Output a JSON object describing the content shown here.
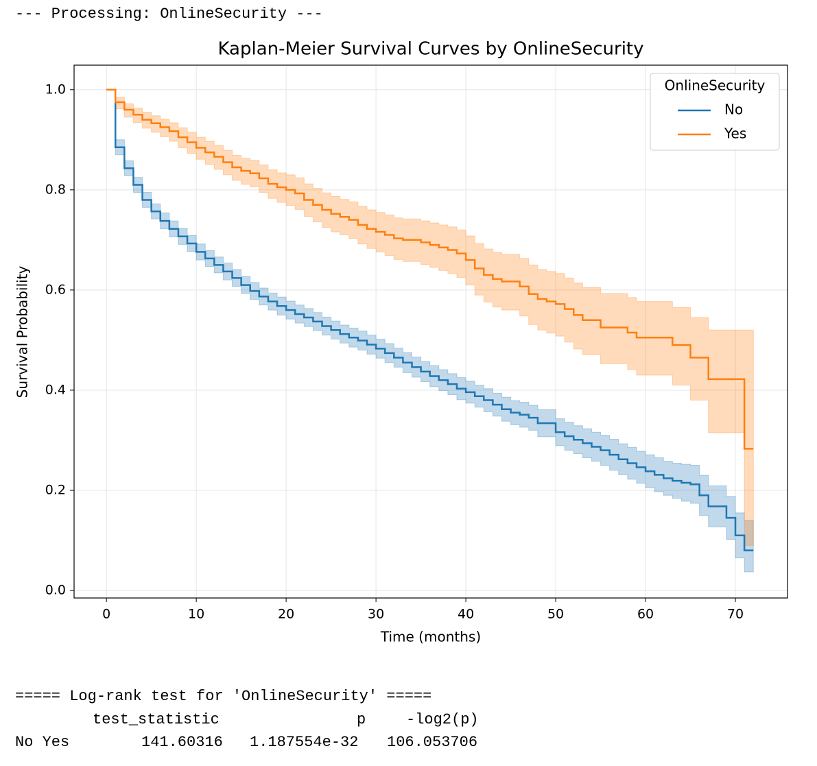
{
  "header": "--- Processing: OnlineSecurity ---",
  "chart_data": {
    "type": "survival",
    "title": "Kaplan-Meier Survival Curves by OnlineSecurity",
    "xlabel": "Time (months)",
    "ylabel": "Survival Probability",
    "legend_title": "OnlineSecurity",
    "legend_loc": "upper right",
    "grid": true,
    "xlim": [
      -3.6,
      75.8
    ],
    "ylim": [
      -0.015,
      1.049
    ],
    "xticks": [
      0,
      10,
      20,
      30,
      40,
      50,
      60,
      70
    ],
    "yticks": [
      {
        "value": 0,
        "label": "0.0"
      },
      {
        "value": 0.2,
        "label": "0.2"
      },
      {
        "value": 0.4,
        "label": "0.4"
      },
      {
        "value": 0.6,
        "label": "0.6"
      },
      {
        "value": 0.8,
        "label": "0.8"
      },
      {
        "value": 1,
        "label": "1.0"
      }
    ],
    "x": [
      0,
      1,
      2,
      3,
      4,
      5,
      6,
      7,
      8,
      9,
      10,
      11,
      12,
      13,
      14,
      15,
      16,
      17,
      18,
      19,
      20,
      21,
      22,
      23,
      24,
      25,
      26,
      27,
      28,
      29,
      30,
      31,
      32,
      33,
      34,
      35,
      36,
      37,
      38,
      39,
      40,
      41,
      42,
      43,
      44,
      45,
      46,
      47,
      48,
      49,
      50,
      51,
      52,
      53,
      54,
      55,
      56,
      57,
      58,
      59,
      60,
      61,
      62,
      63,
      64,
      65,
      66,
      67,
      68,
      69,
      70,
      71,
      72
    ],
    "series": [
      {
        "name": "No",
        "color": "#1f77b4",
        "values": [
          1,
          0.885,
          0.843,
          0.81,
          0.78,
          0.757,
          0.738,
          0.722,
          0.707,
          0.693,
          0.676,
          0.663,
          0.65,
          0.637,
          0.624,
          0.61,
          0.598,
          0.587,
          0.577,
          0.568,
          0.56,
          0.552,
          0.545,
          0.537,
          0.528,
          0.52,
          0.512,
          0.505,
          0.499,
          0.491,
          0.483,
          0.474,
          0.465,
          0.455,
          0.446,
          0.437,
          0.428,
          0.42,
          0.412,
          0.403,
          0.396,
          0.388,
          0.38,
          0.371,
          0.362,
          0.355,
          0.351,
          0.345,
          0.334,
          0.334,
          0.316,
          0.308,
          0.301,
          0.294,
          0.287,
          0.28,
          0.271,
          0.262,
          0.254,
          0.246,
          0.238,
          0.231,
          0.224,
          0.219,
          0.215,
          0.212,
          0.19,
          0.168,
          0.168,
          0.145,
          0.11,
          0.08,
          0.08
        ],
        "lower": [
          1,
          0.87,
          0.828,
          0.795,
          0.765,
          0.742,
          0.722,
          0.706,
          0.691,
          0.677,
          0.66,
          0.647,
          0.634,
          0.62,
          0.607,
          0.593,
          0.581,
          0.57,
          0.56,
          0.55,
          0.542,
          0.534,
          0.527,
          0.519,
          0.51,
          0.502,
          0.494,
          0.486,
          0.48,
          0.472,
          0.464,
          0.455,
          0.446,
          0.435,
          0.426,
          0.417,
          0.407,
          0.399,
          0.391,
          0.381,
          0.374,
          0.366,
          0.357,
          0.348,
          0.338,
          0.331,
          0.326,
          0.32,
          0.307,
          0.307,
          0.289,
          0.28,
          0.273,
          0.265,
          0.258,
          0.25,
          0.24,
          0.231,
          0.222,
          0.214,
          0.205,
          0.197,
          0.19,
          0.184,
          0.178,
          0.174,
          0.15,
          0.127,
          0.127,
          0.102,
          0.065,
          0.037,
          0.037
        ],
        "upper": [
          1,
          0.9,
          0.858,
          0.825,
          0.795,
          0.772,
          0.754,
          0.738,
          0.723,
          0.709,
          0.692,
          0.679,
          0.666,
          0.654,
          0.641,
          0.627,
          0.615,
          0.604,
          0.594,
          0.586,
          0.578,
          0.57,
          0.563,
          0.555,
          0.546,
          0.538,
          0.53,
          0.524,
          0.518,
          0.51,
          0.502,
          0.493,
          0.484,
          0.475,
          0.466,
          0.457,
          0.449,
          0.441,
          0.433,
          0.425,
          0.418,
          0.41,
          0.403,
          0.394,
          0.386,
          0.379,
          0.376,
          0.37,
          0.361,
          0.361,
          0.343,
          0.336,
          0.329,
          0.323,
          0.316,
          0.31,
          0.302,
          0.293,
          0.286,
          0.278,
          0.271,
          0.265,
          0.258,
          0.254,
          0.252,
          0.25,
          0.23,
          0.209,
          0.209,
          0.188,
          0.155,
          0.14,
          0.14
        ]
      },
      {
        "name": "Yes",
        "color": "#ff7f0e",
        "values": [
          1,
          0.975,
          0.96,
          0.95,
          0.94,
          0.933,
          0.925,
          0.917,
          0.905,
          0.895,
          0.884,
          0.875,
          0.866,
          0.855,
          0.845,
          0.838,
          0.833,
          0.823,
          0.812,
          0.805,
          0.8,
          0.793,
          0.78,
          0.77,
          0.76,
          0.752,
          0.746,
          0.74,
          0.73,
          0.722,
          0.716,
          0.71,
          0.703,
          0.7,
          0.7,
          0.695,
          0.69,
          0.685,
          0.68,
          0.673,
          0.66,
          0.643,
          0.63,
          0.622,
          0.617,
          0.617,
          0.607,
          0.592,
          0.582,
          0.577,
          0.572,
          0.562,
          0.55,
          0.54,
          0.54,
          0.525,
          0.525,
          0.525,
          0.515,
          0.505,
          0.505,
          0.505,
          0.505,
          0.49,
          0.49,
          0.465,
          0.465,
          0.422,
          0.422,
          0.422,
          0.422,
          0.283,
          0.283
        ],
        "lower": [
          1,
          0.962,
          0.945,
          0.934,
          0.923,
          0.915,
          0.906,
          0.897,
          0.884,
          0.873,
          0.861,
          0.851,
          0.841,
          0.83,
          0.819,
          0.811,
          0.806,
          0.795,
          0.783,
          0.775,
          0.769,
          0.761,
          0.747,
          0.736,
          0.725,
          0.716,
          0.71,
          0.703,
          0.692,
          0.683,
          0.676,
          0.669,
          0.661,
          0.657,
          0.657,
          0.651,
          0.645,
          0.639,
          0.633,
          0.625,
          0.61,
          0.59,
          0.576,
          0.566,
          0.56,
          0.56,
          0.548,
          0.531,
          0.52,
          0.514,
          0.508,
          0.496,
          0.482,
          0.471,
          0.471,
          0.453,
          0.453,
          0.453,
          0.441,
          0.43,
          0.43,
          0.43,
          0.43,
          0.41,
          0.41,
          0.38,
          0.38,
          0.315,
          0.315,
          0.315,
          0.315,
          0.09,
          0.09
        ],
        "upper": [
          1,
          0.985,
          0.972,
          0.963,
          0.955,
          0.948,
          0.941,
          0.934,
          0.924,
          0.915,
          0.905,
          0.897,
          0.889,
          0.879,
          0.869,
          0.863,
          0.859,
          0.85,
          0.84,
          0.834,
          0.83,
          0.824,
          0.812,
          0.803,
          0.794,
          0.787,
          0.781,
          0.776,
          0.767,
          0.76,
          0.755,
          0.75,
          0.744,
          0.742,
          0.742,
          0.738,
          0.734,
          0.73,
          0.726,
          0.72,
          0.708,
          0.693,
          0.682,
          0.675,
          0.671,
          0.671,
          0.663,
          0.65,
          0.641,
          0.637,
          0.633,
          0.624,
          0.614,
          0.605,
          0.605,
          0.593,
          0.593,
          0.593,
          0.585,
          0.577,
          0.577,
          0.577,
          0.577,
          0.565,
          0.565,
          0.545,
          0.545,
          0.52,
          0.52,
          0.52,
          0.52,
          0.52,
          0.52
        ]
      }
    ]
  },
  "logrank": {
    "title": "===== Log-rank test for 'OnlineSecurity' =====",
    "columns": [
      "test_statistic",
      "p",
      "-log2(p)"
    ],
    "rows": [
      {
        "label": "No Yes",
        "cells": [
          "141.60316",
          "1.187554e-32",
          "106.053706"
        ]
      }
    ]
  }
}
